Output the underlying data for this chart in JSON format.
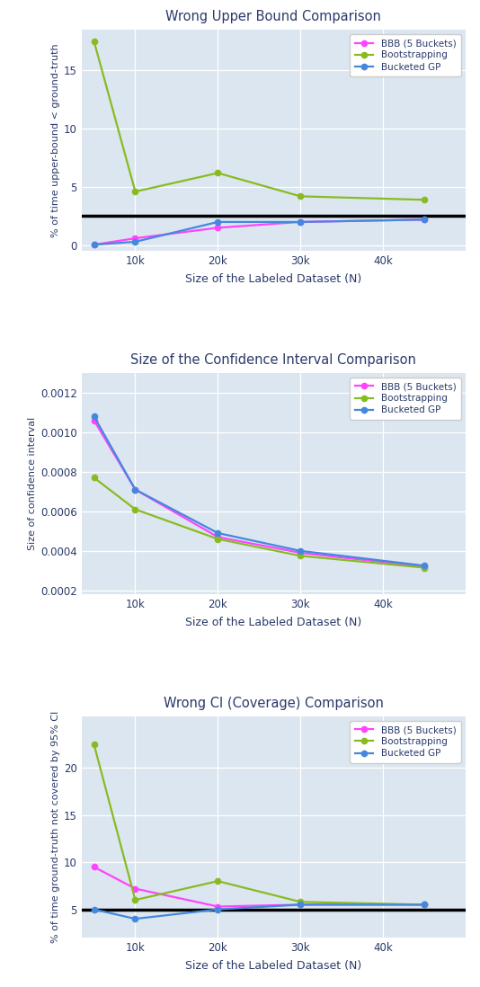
{
  "x_values": [
    5000,
    10000,
    20000,
    30000,
    45000
  ],
  "x_ticks": [
    10000,
    20000,
    30000,
    40000
  ],
  "x_tick_labels": [
    "10k",
    "20k",
    "30k",
    "40k"
  ],
  "plot1": {
    "title": "Wrong Upper Bound Comparison",
    "ylabel": "% of time upper-bound < ground-truth",
    "xlabel": "Size of the Labeled Dataset (N)",
    "bbb": [
      0.05,
      0.6,
      1.5,
      2.0,
      2.2
    ],
    "bootstrapping": [
      17.5,
      4.6,
      6.2,
      4.2,
      3.9
    ],
    "bucketed_gp": [
      0.05,
      0.3,
      2.0,
      2.0,
      2.2
    ],
    "hline": 2.5,
    "ylim": [
      -0.5,
      18.5
    ],
    "yticks": [
      0,
      5,
      10,
      15
    ]
  },
  "plot2": {
    "title": "Size of the Confidence Interval Comparison",
    "ylabel": "Size of confidence interval",
    "xlabel": "Size of the Labeled Dataset (N)",
    "bbb": [
      0.00106,
      0.00071,
      0.00047,
      0.00039,
      0.00032
    ],
    "bootstrapping": [
      0.00077,
      0.00061,
      0.00046,
      0.000375,
      0.000315
    ],
    "bucketed_gp": [
      0.00108,
      0.00071,
      0.00049,
      0.0004,
      0.000325
    ],
    "ylim": [
      0.00018,
      0.0013
    ],
    "yticks": [
      0.0002,
      0.0004,
      0.0006,
      0.0008,
      0.001,
      0.0012
    ]
  },
  "plot3": {
    "title": "Wrong CI (Coverage) Comparison",
    "ylabel": "% of time ground-truth not covered by 95% CI",
    "xlabel": "Size of the Labeled Dataset (N)",
    "bbb": [
      9.5,
      7.2,
      5.3,
      5.5,
      5.5
    ],
    "bootstrapping": [
      22.5,
      6.0,
      8.0,
      5.8,
      5.5
    ],
    "bucketed_gp": [
      5.0,
      4.0,
      5.0,
      5.5,
      5.5
    ],
    "hline": 5.0,
    "ylim": [
      2.0,
      25.5
    ],
    "yticks": [
      5,
      10,
      15,
      20
    ]
  },
  "colors": {
    "bbb": "#ff44ff",
    "bootstrapping": "#88bb22",
    "bucketed_gp": "#4488dd"
  },
  "legend_labels": [
    "BBB (5 Buckets)",
    "Bootstrapping",
    "Bucketed GP"
  ],
  "plot_bg_color": "#dce6f0",
  "fig_bg_color": "#ffffff",
  "title_color": "#2a3a6a",
  "label_color": "#2a3a6a",
  "tick_color": "#2a3a6a",
  "grid_color": "#ffffff",
  "hline_color": "#000000"
}
